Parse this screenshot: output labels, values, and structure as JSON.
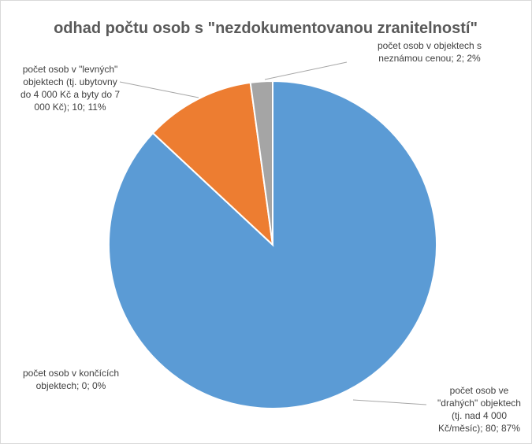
{
  "chart_data": {
    "type": "pie",
    "title": "odhad počtu osob s \"nezdokumentovanou zranitelností\"",
    "values": [
      80,
      0,
      10,
      2
    ],
    "value_labels": [
      "počet osob ve \"drahých\" objektech (tj. nad 4 000 Kč/měsíc); 80; 87%",
      "počet osob v končících objektech; 0; 0%",
      "počet osob v \"levných\" objektech (tj. ubytovny do 4 000 Kč a byty do 7 000 Kč); 10; 11%",
      "počet osob v objektech s neznámou cenou; 2; 2%"
    ],
    "colors": [
      "#5b9bd5",
      "#ffc000",
      "#ed7d31",
      "#a5a5a5"
    ]
  }
}
